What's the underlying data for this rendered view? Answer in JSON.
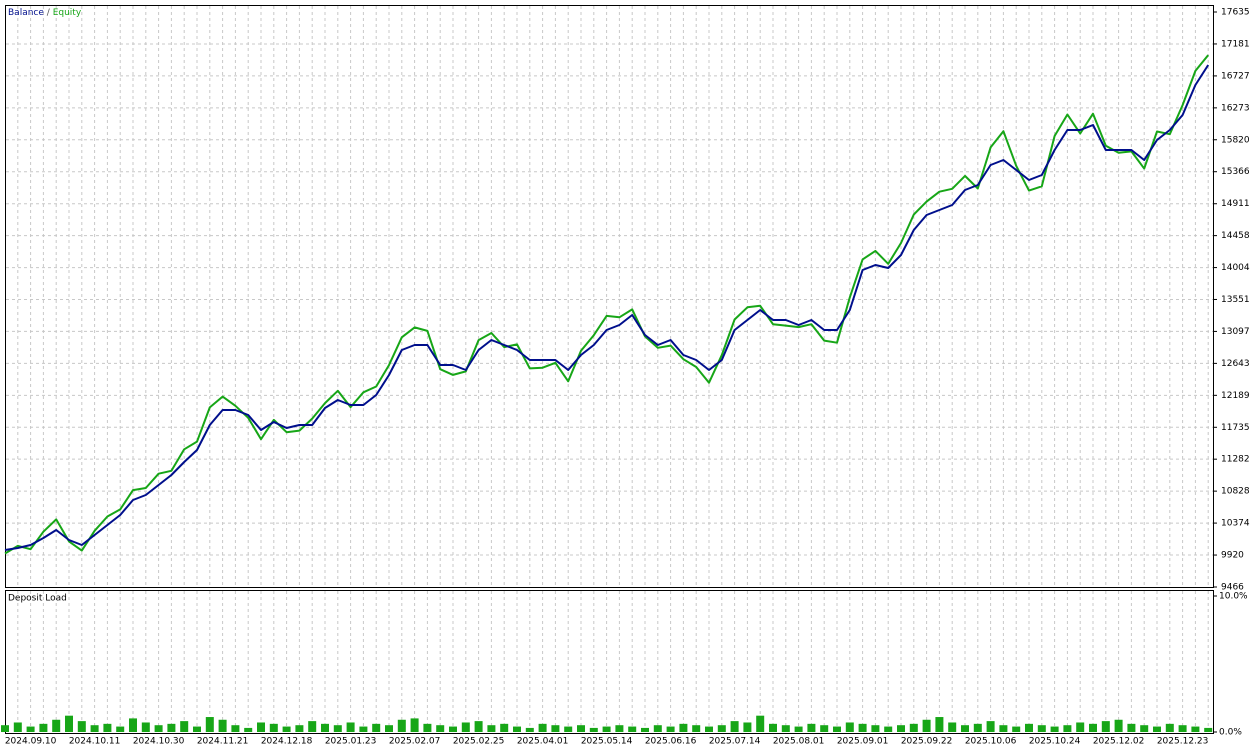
{
  "chart_data": {
    "type": "line",
    "legend_separator": "/",
    "categories": [
      null,
      null,
      "2024.09.10",
      null,
      null,
      null,
      null,
      "2024.10.11",
      null,
      null,
      null,
      null,
      "2024.10.30",
      null,
      null,
      null,
      null,
      "2024.11.21",
      null,
      null,
      null,
      null,
      "2024.12.18",
      null,
      null,
      null,
      null,
      "2025.01.23",
      null,
      null,
      null,
      null,
      "2025.02.07",
      null,
      null,
      null,
      null,
      "2025.02.25",
      null,
      null,
      null,
      null,
      "2025.04.01",
      null,
      null,
      null,
      null,
      "2025.05.14",
      null,
      null,
      null,
      null,
      "2025.06.16",
      null,
      null,
      null,
      null,
      "2025.07.14",
      null,
      null,
      null,
      null,
      "2025.08.01",
      null,
      null,
      null,
      null,
      "2025.09.01",
      null,
      null,
      null,
      null,
      "2025.09.22",
      null,
      null,
      null,
      null,
      "2025.10.06",
      null,
      null,
      null,
      null,
      "2025.10.24",
      null,
      null,
      null,
      null,
      "2025.12.02",
      null,
      null,
      null,
      null,
      "2025.12.23",
      null,
      null
    ],
    "series": [
      {
        "name": "Balance",
        "color": "#000f8c",
        "values": [
          9992,
          10020,
          10063,
          10162,
          10276,
          10134,
          10063,
          10205,
          10347,
          10489,
          10702,
          10773,
          10915,
          11057,
          11242,
          11412,
          11768,
          11981,
          11981,
          11910,
          11696,
          11810,
          11725,
          11768,
          11768,
          12009,
          12123,
          12052,
          12052,
          12194,
          12478,
          12833,
          12904,
          12904,
          12620,
          12620,
          12549,
          12833,
          12975,
          12904,
          12833,
          12691,
          12691,
          12691,
          12549,
          12762,
          12904,
          13117,
          13188,
          13330,
          13046,
          12904,
          12975,
          12762,
          12691,
          12549,
          12691,
          13117,
          13259,
          13401,
          13259,
          13259,
          13188,
          13259,
          13117,
          13117,
          13401,
          13970,
          14041,
          13998,
          14183,
          14538,
          14751,
          14822,
          14893,
          15106,
          15177,
          15461,
          15532,
          15390,
          15248,
          15319,
          15674,
          15959,
          15959,
          16030,
          15674,
          15674,
          15674,
          15532,
          15817,
          15959,
          16172,
          16598,
          16882
        ]
      },
      {
        "name": "Equity",
        "color": "#17a617",
        "values": [
          9942,
          10050,
          10003,
          10252,
          10426,
          10114,
          9983,
          10265,
          10467,
          10569,
          10842,
          10873,
          11075,
          11117,
          11422,
          11532,
          12018,
          12171,
          12041,
          11870,
          11566,
          11840,
          11665,
          11688,
          11858,
          12079,
          12253,
          12022,
          12232,
          12314,
          12618,
          13013,
          13154,
          13104,
          12560,
          12480,
          12529,
          12973,
          13075,
          12874,
          12913,
          12571,
          12581,
          12651,
          12389,
          12822,
          13044,
          13317,
          13298,
          13410,
          13026,
          12864,
          12895,
          12702,
          12591,
          12369,
          12761,
          13267,
          13439,
          13461,
          13199,
          13179,
          13158,
          13199,
          12967,
          12937,
          13581,
          14120,
          14241,
          14058,
          14353,
          14758,
          14941,
          15082,
          15123,
          15306,
          15127,
          15711,
          15942,
          15450,
          15098,
          15159,
          15874,
          16179,
          15909,
          16190,
          15734,
          15634,
          15654,
          15412,
          15937,
          15899,
          16312,
          16798,
          17022
        ]
      }
    ],
    "ylim": [
      9466,
      17635
    ],
    "yticks": [
      9466,
      9920,
      10374,
      10828,
      11282,
      11735,
      12189,
      12643,
      13097,
      13551,
      14004,
      14458,
      14911,
      15366,
      15820,
      16273,
      16727,
      17181,
      17635
    ],
    "grid": true,
    "deposit_load": {
      "title": "Deposit Load",
      "color": "#17a617",
      "ylim": [
        0,
        10
      ],
      "yticks": [
        {
          "value": 0,
          "label": "0.0%"
        },
        {
          "value": 10,
          "label": "10.0%"
        }
      ],
      "values": [
        0.5,
        0.7,
        0.4,
        0.6,
        0.9,
        1.2,
        0.8,
        0.5,
        0.6,
        0.4,
        1.0,
        0.7,
        0.5,
        0.6,
        0.8,
        0.4,
        1.1,
        0.9,
        0.5,
        0.3,
        0.7,
        0.6,
        0.4,
        0.5,
        0.8,
        0.6,
        0.5,
        0.7,
        0.4,
        0.6,
        0.5,
        0.9,
        1.0,
        0.6,
        0.5,
        0.4,
        0.7,
        0.8,
        0.5,
        0.6,
        0.4,
        0.3,
        0.6,
        0.5,
        0.4,
        0.5,
        0.3,
        0.4,
        0.5,
        0.4,
        0.3,
        0.5,
        0.4,
        0.6,
        0.5,
        0.4,
        0.5,
        0.8,
        0.7,
        1.2,
        0.6,
        0.5,
        0.4,
        0.6,
        0.5,
        0.4,
        0.7,
        0.6,
        0.5,
        0.4,
        0.5,
        0.6,
        0.9,
        1.1,
        0.7,
        0.5,
        0.6,
        0.8,
        0.5,
        0.4,
        0.6,
        0.5,
        0.4,
        0.5,
        0.7,
        0.6,
        0.8,
        0.9,
        0.6,
        0.5,
        0.4,
        0.6,
        0.5,
        0.4,
        0.3
      ]
    }
  }
}
